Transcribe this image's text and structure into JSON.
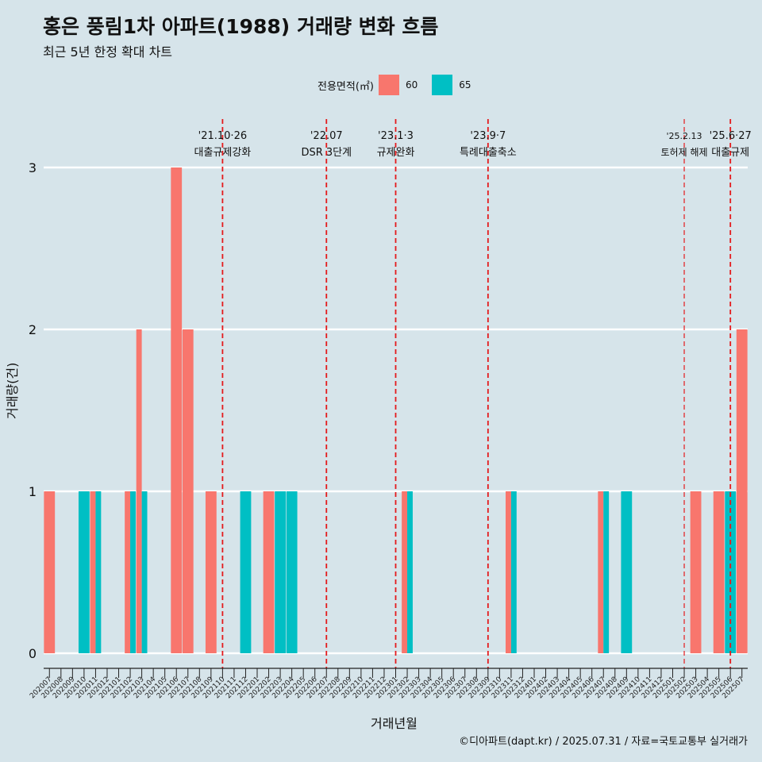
{
  "title": "홍은 풍림1차 아파트(1988) 거래량 변화 흐름",
  "subtitle": "최근 5년 한정 확대 차트",
  "caption": "©디아파트(dapt.kr) / 2025.07.31 / 자료=국토교통부 실거래가",
  "legend": {
    "title": "전용면적(㎡)",
    "items": [
      {
        "label": "60",
        "color": "#F8766D"
      },
      {
        "label": "65",
        "color": "#00BFC4"
      }
    ]
  },
  "chart_data": {
    "type": "bar",
    "xlabel": "거래년월",
    "ylabel": "거래량(건)",
    "ylim": [
      0,
      3
    ],
    "yticks": [
      0,
      1,
      2,
      3
    ],
    "grid": true,
    "legend_position": "top",
    "categories": [
      "202007",
      "202008",
      "202009",
      "202010",
      "202011",
      "202012",
      "202101",
      "202102",
      "202103",
      "202104",
      "202105",
      "202106",
      "202107",
      "202108",
      "202109",
      "202110",
      "202111",
      "202112",
      "202201",
      "202202",
      "202203",
      "202204",
      "202205",
      "202206",
      "202207",
      "202208",
      "202209",
      "202210",
      "202211",
      "202212",
      "202301",
      "202302",
      "202303",
      "202304",
      "202305",
      "202306",
      "202307",
      "202308",
      "202309",
      "202310",
      "202311",
      "202312",
      "202401",
      "202402",
      "202403",
      "202404",
      "202405",
      "202406",
      "202407",
      "202408",
      "202409",
      "202410",
      "202411",
      "202412",
      "202501",
      "202502",
      "202503",
      "202504",
      "202505",
      "202506",
      "202507"
    ],
    "series": [
      {
        "name": "60",
        "color": "#F8766D",
        "values": [
          1,
          0,
          0,
          0,
          1,
          0,
          0,
          1,
          2,
          0,
          0,
          3,
          2,
          0,
          1,
          0,
          0,
          0,
          0,
          1,
          0,
          0,
          0,
          0,
          0,
          0,
          0,
          0,
          0,
          0,
          0,
          1,
          0,
          0,
          0,
          0,
          0,
          0,
          0,
          0,
          1,
          0,
          0,
          0,
          0,
          0,
          0,
          0,
          1,
          0,
          0,
          0,
          0,
          0,
          0,
          0,
          1,
          0,
          1,
          0,
          2
        ]
      },
      {
        "name": "65",
        "color": "#00BFC4",
        "values": [
          0,
          0,
          0,
          1,
          1,
          0,
          0,
          1,
          1,
          0,
          0,
          0,
          0,
          0,
          0,
          0,
          0,
          1,
          0,
          0,
          1,
          1,
          0,
          0,
          0,
          0,
          0,
          0,
          0,
          0,
          0,
          1,
          0,
          0,
          0,
          0,
          0,
          0,
          0,
          0,
          1,
          0,
          0,
          0,
          0,
          0,
          0,
          0,
          1,
          0,
          1,
          0,
          0,
          0,
          0,
          0,
          0,
          0,
          0,
          1,
          0
        ]
      }
    ],
    "annotations": [
      {
        "x": "202110",
        "date": "'21.10·26",
        "label": "대출규제강화"
      },
      {
        "x": "202207",
        "date": "'22.07",
        "label": "DSR 3단계"
      },
      {
        "x": "202301",
        "date": "'23.1·3",
        "label": "규제완화"
      },
      {
        "x": "202309",
        "date": "'23.9·7",
        "label": "특례대출축소"
      },
      {
        "x": "202502",
        "date": "'25.2.13",
        "label": "토허제 해제"
      },
      {
        "x": "202506",
        "date": "'25.6·27",
        "label": "대출규제"
      }
    ]
  }
}
